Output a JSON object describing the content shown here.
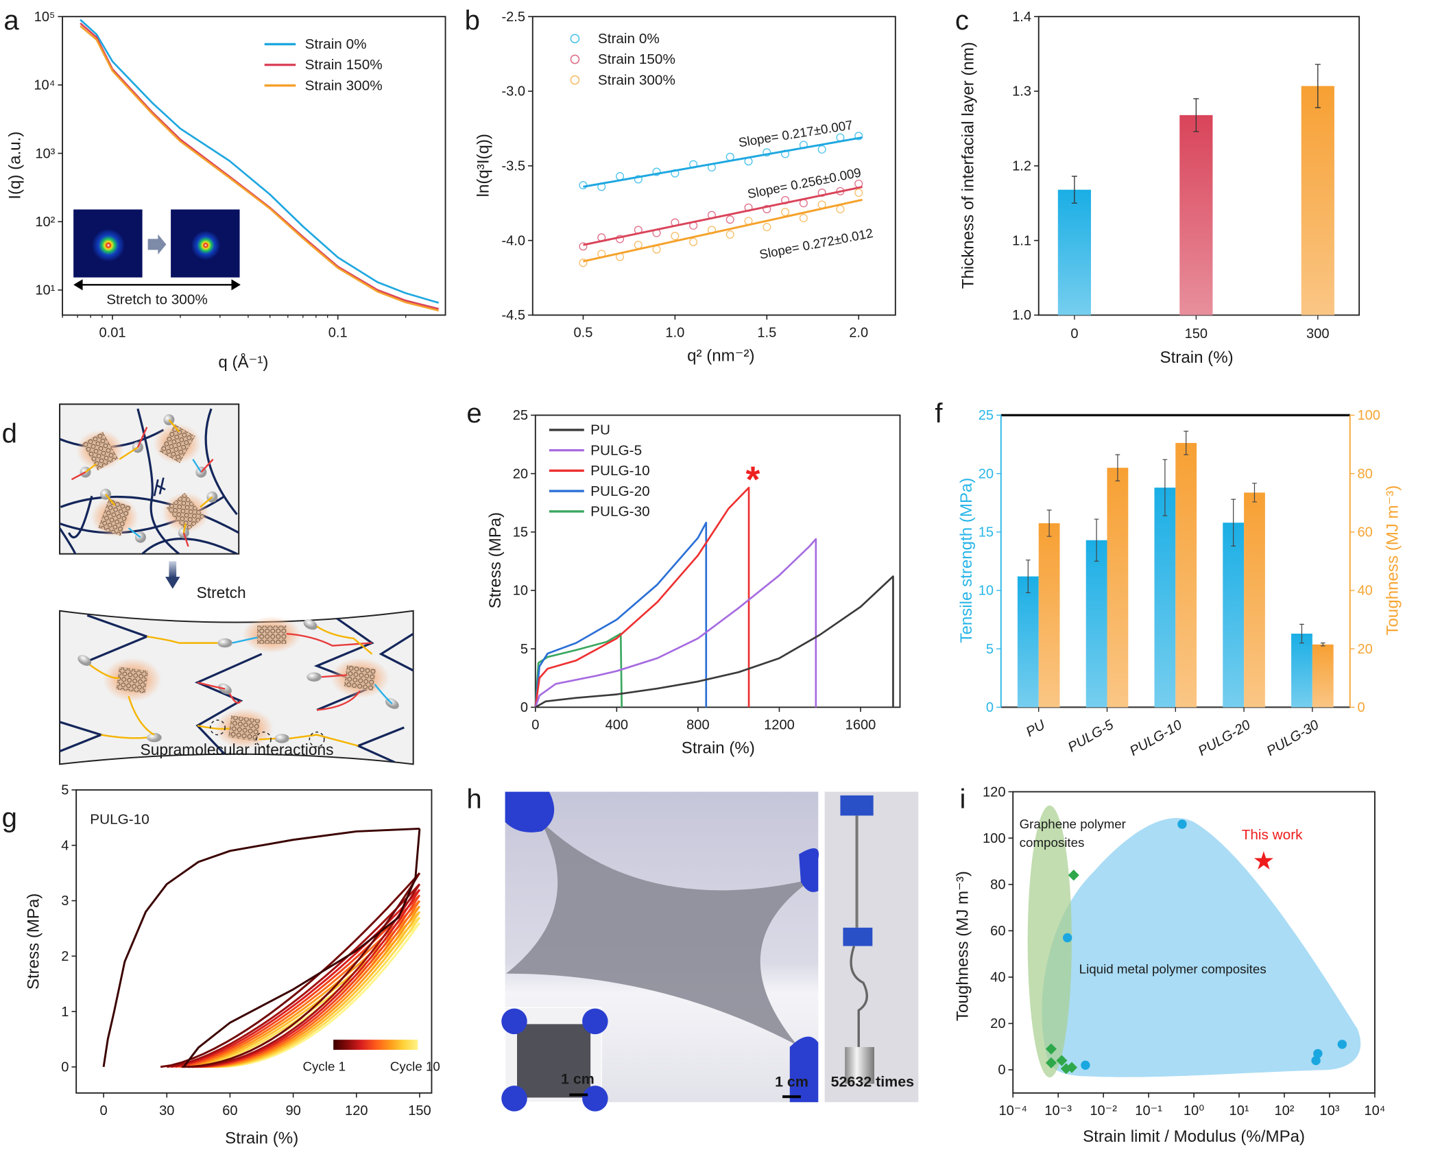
{
  "panel_letters": {
    "a": "a",
    "b": "b",
    "c": "c",
    "d": "d",
    "e": "e",
    "f": "f",
    "g": "g",
    "h": "h",
    "i": "i"
  },
  "diagram_d": {
    "stretch_label": "Stretch",
    "caption": "Supramolecular interactions"
  },
  "photo_h": {
    "inset_scale_bar": "1 cm",
    "main_scale_bar": "1 cm",
    "cycles_label": "52632 times"
  },
  "chart_data": [
    {
      "panel": "a",
      "type": "line",
      "xscale": "log",
      "yscale": "log",
      "xlim": [
        0.006,
        0.3
      ],
      "ylim": [
        4.3,
        100000
      ],
      "xticks": [
        {
          "value": 0.01,
          "label": "0.01"
        },
        {
          "value": 0.1,
          "label": "0.1"
        }
      ],
      "yticks": [
        {
          "value": 10,
          "label": "10¹"
        },
        {
          "value": 100,
          "label": "10²"
        },
        {
          "value": 1000,
          "label": "10³"
        },
        {
          "value": 10000,
          "label": "10⁴"
        },
        {
          "value": 100000,
          "label": "10⁵"
        }
      ],
      "xlabel": "q (Å⁻¹)",
      "ylabel": "I(q) (a.u.)",
      "legend_position": "top-right",
      "inset_label": "Stretch to 300%",
      "series": [
        {
          "name": "Strain 0%",
          "color": "#1ea7e0",
          "x": [
            0.0072,
            0.0085,
            0.01,
            0.015,
            0.02,
            0.033,
            0.05,
            0.07,
            0.1,
            0.15,
            0.2,
            0.28
          ],
          "y": [
            90000,
            55000,
            22000,
            5500,
            2300,
            780,
            250,
            85,
            30,
            13,
            9,
            6.5
          ]
        },
        {
          "name": "Strain 150%",
          "color": "#d9445a",
          "x": [
            0.0072,
            0.0085,
            0.01,
            0.015,
            0.02,
            0.033,
            0.05,
            0.07,
            0.1,
            0.15,
            0.2,
            0.28
          ],
          "y": [
            80000,
            50000,
            17000,
            4000,
            1600,
            460,
            160,
            60,
            22,
            10,
            7,
            5.3
          ]
        },
        {
          "name": "Strain 300%",
          "color": "#f5a12a",
          "x": [
            0.0072,
            0.0085,
            0.01,
            0.015,
            0.02,
            0.033,
            0.05,
            0.07,
            0.1,
            0.15,
            0.2,
            0.28
          ],
          "y": [
            73000,
            46000,
            16000,
            3800,
            1500,
            440,
            155,
            57,
            21,
            9.5,
            6.6,
            5.0
          ]
        }
      ]
    },
    {
      "panel": "b",
      "type": "scatter",
      "xlim": [
        0.225,
        2.2
      ],
      "ylim": [
        -4.5,
        -2.5
      ],
      "xticks": [
        {
          "value": 0.5,
          "label": "0.5"
        },
        {
          "value": 1.0,
          "label": "1.0"
        },
        {
          "value": 1.5,
          "label": "1.5"
        },
        {
          "value": 2.0,
          "label": "2.0"
        }
      ],
      "yticks": [
        {
          "value": -2.5,
          "label": "-2.5"
        },
        {
          "value": -3.0,
          "label": "-3.0"
        },
        {
          "value": -3.5,
          "label": "-3.5"
        },
        {
          "value": -4.0,
          "label": "-4.0"
        },
        {
          "value": -4.5,
          "label": "-4.5"
        }
      ],
      "xlabel": "q² (nm⁻²)",
      "ylabel": "ln(q³I(q))",
      "legend_position": "top-left",
      "series": [
        {
          "name": "Strain 0%",
          "color": "#4cc3ec",
          "line_color": "#1ea7e0",
          "slope_label": "Slope= 0.217±0.007",
          "fit": {
            "x": [
              0.5,
              2.02
            ],
            "y": [
              -3.64,
              -3.31
            ]
          },
          "x": [
            0.5,
            0.6,
            0.7,
            0.8,
            0.9,
            1.0,
            1.1,
            1.2,
            1.3,
            1.4,
            1.5,
            1.6,
            1.7,
            1.8,
            1.9,
            2.0
          ],
          "y": [
            -3.63,
            -3.64,
            -3.57,
            -3.59,
            -3.54,
            -3.55,
            -3.49,
            -3.51,
            -3.44,
            -3.47,
            -3.41,
            -3.42,
            -3.36,
            -3.39,
            -3.31,
            -3.3
          ]
        },
        {
          "name": "Strain 150%",
          "color": "#e0708a",
          "line_color": "#d9445a",
          "slope_label": "Slope= 0.256±0.009",
          "fit": {
            "x": [
              0.5,
              2.02
            ],
            "y": [
              -4.03,
              -3.641
            ]
          },
          "x": [
            0.5,
            0.6,
            0.7,
            0.8,
            0.9,
            1.0,
            1.1,
            1.2,
            1.3,
            1.4,
            1.5,
            1.6,
            1.7,
            1.8,
            1.9,
            2.0
          ],
          "y": [
            -4.04,
            -3.98,
            -3.99,
            -3.93,
            -3.95,
            -3.88,
            -3.9,
            -3.83,
            -3.86,
            -3.78,
            -3.79,
            -3.73,
            -3.75,
            -3.68,
            -3.67,
            -3.62
          ]
        },
        {
          "name": "Strain 300%",
          "color": "#f7be6a",
          "line_color": "#f5a12a",
          "slope_label": "Slope= 0.272±0.012",
          "fit": {
            "x": [
              0.5,
              2.02
            ],
            "y": [
              -4.14,
              -3.727
            ]
          },
          "x": [
            0.5,
            0.6,
            0.7,
            0.8,
            0.9,
            1.0,
            1.1,
            1.2,
            1.3,
            1.4,
            1.5,
            1.6,
            1.7,
            1.8,
            1.9,
            2.0
          ],
          "y": [
            -4.15,
            -4.09,
            -4.11,
            -4.03,
            -4.06,
            -3.97,
            -4.01,
            -3.93,
            -3.96,
            -3.87,
            -3.91,
            -3.81,
            -3.85,
            -3.76,
            -3.79,
            -3.68
          ]
        }
      ]
    },
    {
      "panel": "c",
      "type": "bar",
      "categories": [
        "0",
        "150",
        "300"
      ],
      "values": [
        1.168,
        1.268,
        1.307
      ],
      "errors": [
        0.018,
        0.022,
        0.029
      ],
      "colors": [
        "#1aaee5",
        "#d9445a",
        "#f7a033"
      ],
      "ylim": [
        1.0,
        1.4
      ],
      "yticks": [
        {
          "value": 1.0,
          "label": "1.0"
        },
        {
          "value": 1.1,
          "label": "1.1"
        },
        {
          "value": 1.2,
          "label": "1.2"
        },
        {
          "value": 1.3,
          "label": "1.3"
        },
        {
          "value": 1.4,
          "label": "1.4"
        }
      ],
      "xlabel": "Strain (%)",
      "ylabel": "Thickness of interfacial layer (nm)"
    },
    {
      "panel": "e",
      "type": "line",
      "xlim": [
        0,
        1794
      ],
      "ylim": [
        0,
        25
      ],
      "xticks": [
        {
          "value": 0,
          "label": "0"
        },
        {
          "value": 400,
          "label": "400"
        },
        {
          "value": 800,
          "label": "800"
        },
        {
          "value": 1200,
          "label": "1200"
        },
        {
          "value": 1600,
          "label": "1600"
        }
      ],
      "yticks": [
        {
          "value": 0,
          "label": "0"
        },
        {
          "value": 5,
          "label": "5"
        },
        {
          "value": 10,
          "label": "10"
        },
        {
          "value": 15,
          "label": "15"
        },
        {
          "value": 20,
          "label": "20"
        },
        {
          "value": 25,
          "label": "25"
        }
      ],
      "xlabel": "Strain (%)",
      "ylabel": "Stress (MPa)",
      "legend_position": "top-left",
      "annotation": {
        "text": "*",
        "x": 1070,
        "y": 20.3,
        "color": "#ee2020"
      },
      "series": [
        {
          "name": "PU",
          "color": "#3a3a3a",
          "x": [
            0,
            50,
            200,
            400,
            600,
            800,
            1000,
            1200,
            1400,
            1600,
            1760,
            1760
          ],
          "y": [
            0,
            0.5,
            0.8,
            1.1,
            1.6,
            2.2,
            3.0,
            4.2,
            6.2,
            8.6,
            11.2,
            0
          ]
        },
        {
          "name": "PULG-5",
          "color": "#a66be0",
          "x": [
            0,
            20,
            100,
            300,
            400,
            600,
            800,
            1000,
            1200,
            1350,
            1380,
            1380
          ],
          "y": [
            0,
            1.0,
            2.0,
            2.7,
            3.1,
            4.2,
            5.9,
            8.5,
            11.3,
            13.8,
            14.4,
            0
          ]
        },
        {
          "name": "PULG-10",
          "color": "#ee3030",
          "x": [
            0,
            20,
            60,
            200,
            400,
            600,
            800,
            950,
            1050,
            1050
          ],
          "y": [
            0,
            2.5,
            3.3,
            4.0,
            5.9,
            9.0,
            13.0,
            17.0,
            18.8,
            0
          ]
        },
        {
          "name": "PULG-20",
          "color": "#2a6fd6",
          "x": [
            0,
            20,
            60,
            200,
            400,
            600,
            800,
            840,
            840
          ],
          "y": [
            0,
            3.5,
            4.6,
            5.5,
            7.5,
            10.5,
            14.5,
            15.8,
            0
          ]
        },
        {
          "name": "PULG-30",
          "color": "#3aa860",
          "x": [
            0,
            15,
            60,
            200,
            350,
            420,
            425
          ],
          "y": [
            0,
            3.8,
            4.3,
            4.9,
            5.6,
            6.3,
            0
          ]
        }
      ]
    },
    {
      "panel": "f",
      "type": "bar",
      "categories": [
        "PU",
        "PULG-5",
        "PULG-10",
        "PULG-20",
        "PULG-30"
      ],
      "series": [
        {
          "name": "Tensile strength (MPa)",
          "axis": "left",
          "color": "#1aaee5",
          "values": [
            11.2,
            14.3,
            18.8,
            15.8,
            6.3
          ],
          "errors": [
            1.4,
            1.8,
            2.4,
            2.0,
            0.8
          ]
        },
        {
          "name": "Toughness (MJ m⁻³)",
          "axis": "right",
          "color": "#f7a033",
          "values": [
            63,
            82,
            90.5,
            73.5,
            21.5
          ],
          "errors": [
            4.5,
            4.5,
            4.0,
            3.2,
            0.5
          ]
        }
      ],
      "ylim_left": [
        0,
        25
      ],
      "ylim_right": [
        0,
        100
      ],
      "yticks_left": [
        {
          "value": 0,
          "label": "0"
        },
        {
          "value": 5,
          "label": "5"
        },
        {
          "value": 10,
          "label": "10"
        },
        {
          "value": 15,
          "label": "15"
        },
        {
          "value": 20,
          "label": "20"
        },
        {
          "value": 25,
          "label": "25"
        }
      ],
      "yticks_right": [
        {
          "value": 0,
          "label": "0"
        },
        {
          "value": 20,
          "label": "20"
        },
        {
          "value": 40,
          "label": "40"
        },
        {
          "value": 60,
          "label": "60"
        },
        {
          "value": 80,
          "label": "80"
        },
        {
          "value": 100,
          "label": "100"
        }
      ],
      "ylabel_left": "Tensile strength (MPa)",
      "ylabel_right": "Toughness (MJ m⁻³)",
      "left_axis_color": "#29b6e8",
      "right_axis_color": "#f7a534"
    },
    {
      "panel": "g",
      "type": "line",
      "xlim": [
        -13,
        155.7
      ],
      "ylim": [
        -0.47,
        5
      ],
      "xticks": [
        {
          "value": 0,
          "label": "0"
        },
        {
          "value": 30,
          "label": "30"
        },
        {
          "value": 60,
          "label": "60"
        },
        {
          "value": 90,
          "label": "90"
        },
        {
          "value": 120,
          "label": "120"
        },
        {
          "value": 150,
          "label": "150"
        }
      ],
      "yticks": [
        {
          "value": 0,
          "label": "0"
        },
        {
          "value": 1,
          "label": "1"
        },
        {
          "value": 2,
          "label": "2"
        },
        {
          "value": 3,
          "label": "3"
        },
        {
          "value": 4,
          "label": "4"
        },
        {
          "value": 5,
          "label": "5"
        }
      ],
      "xlabel": "Strain (%)",
      "ylabel": "Stress (MPa)",
      "sample_label": "PULG-10",
      "colorbar": {
        "start_label": "Cycle 1",
        "end_label": "Cycle 10",
        "colors": [
          "#3b0000",
          "#8b0a0a",
          "#d81e1e",
          "#ff5a1a",
          "#ff9a1a",
          "#ffd23a",
          "#fff48a"
        ]
      },
      "cycle_1": {
        "loading": {
          "x": [
            0,
            2,
            5,
            10,
            20,
            30,
            45,
            60,
            90,
            120,
            150
          ],
          "y": [
            0,
            0.5,
            1.0,
            1.9,
            2.8,
            3.3,
            3.7,
            3.9,
            4.1,
            4.25,
            4.3
          ]
        },
        "unloading": {
          "x": [
            150,
            148,
            140,
            120,
            90,
            60,
            45,
            38
          ],
          "y": [
            4.3,
            3.4,
            2.7,
            2.1,
            1.4,
            0.8,
            0.35,
            0
          ]
        }
      },
      "cycles": [
        {
          "cycle": 2,
          "residual_strain": 27,
          "peak_stress": 3.5
        },
        {
          "cycle": 3,
          "residual_strain": 30,
          "peak_stress": 3.3
        },
        {
          "cycle": 4,
          "residual_strain": 32,
          "peak_stress": 3.2
        },
        {
          "cycle": 5,
          "residual_strain": 34,
          "peak_stress": 3.1
        },
        {
          "cycle": 6,
          "residual_strain": 36,
          "peak_stress": 3.0
        },
        {
          "cycle": 7,
          "residual_strain": 38,
          "peak_stress": 2.9
        },
        {
          "cycle": 8,
          "residual_strain": 40,
          "peak_stress": 2.8
        },
        {
          "cycle": 9,
          "residual_strain": 42,
          "peak_stress": 2.7
        },
        {
          "cycle": 10,
          "residual_strain": 44,
          "peak_stress": 2.6
        }
      ]
    },
    {
      "panel": "i",
      "type": "scatter",
      "xscale": "log",
      "xlim": [
        0.0001,
        10000
      ],
      "ylim": [
        -10,
        120
      ],
      "xticks": [
        {
          "value": 0.0001,
          "label": "10⁻⁴"
        },
        {
          "value": 0.001,
          "label": "10⁻³"
        },
        {
          "value": 0.01,
          "label": "10⁻²"
        },
        {
          "value": 0.1,
          "label": "10⁻¹"
        },
        {
          "value": 1,
          "label": "10⁰"
        },
        {
          "value": 10,
          "label": "10¹"
        },
        {
          "value": 100,
          "label": "10²"
        },
        {
          "value": 1000,
          "label": "10³"
        },
        {
          "value": 10000,
          "label": "10⁴"
        }
      ],
      "yticks": [
        {
          "value": 0,
          "label": "0"
        },
        {
          "value": 20,
          "label": "20"
        },
        {
          "value": 40,
          "label": "40"
        },
        {
          "value": 60,
          "label": "60"
        },
        {
          "value": 80,
          "label": "80"
        },
        {
          "value": 100,
          "label": "100"
        },
        {
          "value": 120,
          "label": "120"
        }
      ],
      "xlabel": "Strain limit / Modulus (%/MPa)",
      "ylabel": "Toughness (MJ m⁻³)",
      "series": [
        {
          "name": "Liquid metal polymer composites",
          "marker": "circle",
          "color": "#1aa7e0",
          "region_color": "#7cc9ef",
          "x": [
            0.55,
            0.0016,
            0.004,
            500,
            550,
            1900
          ],
          "y": [
            106,
            57,
            2,
            4,
            7,
            11
          ]
        },
        {
          "name_lines": [
            "Graphene polymer",
            "composites"
          ],
          "marker": "diamond",
          "color": "#2ea84a",
          "region_color": "#a8cf8e",
          "x": [
            0.0007,
            0.0007,
            0.0012,
            0.0015,
            0.002,
            0.0022
          ],
          "y": [
            9,
            3,
            4,
            0.5,
            1,
            84
          ]
        },
        {
          "name": "This work",
          "marker": "star",
          "color": "#ee1c1c",
          "x": [
            35
          ],
          "y": [
            90
          ]
        }
      ]
    }
  ]
}
